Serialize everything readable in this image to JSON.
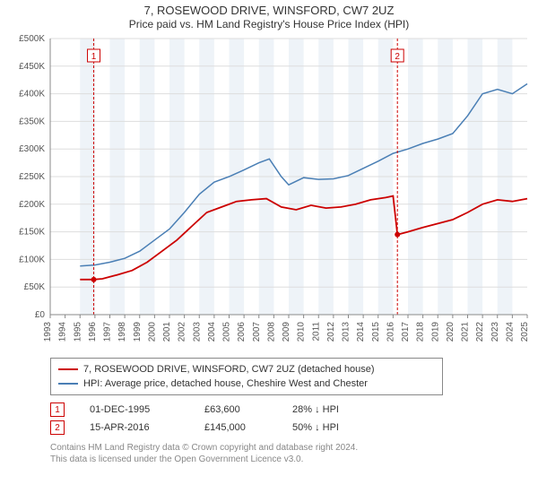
{
  "title_main": "7, ROSEWOOD DRIVE, WINSFORD, CW7 2UZ",
  "title_sub": "Price paid vs. HM Land Registry's House Price Index (HPI)",
  "chart": {
    "type": "line",
    "background_color": "#ffffff",
    "x_axis": {
      "min": 1993,
      "max": 2025,
      "ticks": [
        1993,
        1994,
        1995,
        1996,
        1997,
        1998,
        1999,
        2000,
        2001,
        2002,
        2003,
        2004,
        2005,
        2006,
        2007,
        2008,
        2009,
        2010,
        2011,
        2012,
        2013,
        2014,
        2015,
        2016,
        2017,
        2018,
        2019,
        2020,
        2021,
        2022,
        2023,
        2024,
        2025
      ],
      "label_fontsize": 10,
      "label_color": "#555555"
    },
    "y_axis": {
      "min": 0,
      "max": 500000,
      "tick_step": 50000,
      "tick_prefix": "£",
      "tick_suffix": "K",
      "ticks": [
        0,
        50000,
        100000,
        150000,
        200000,
        250000,
        300000,
        350000,
        400000,
        450000,
        500000
      ],
      "label_fontsize": 10,
      "label_color": "#555555",
      "grid_color": "#dddddd"
    },
    "shaded_bands": [
      {
        "from_year": 1995.0,
        "to_year": 1996.0,
        "color": "#eef3f8"
      },
      {
        "from_year": 1997.0,
        "to_year": 1998.0,
        "color": "#eef3f8"
      },
      {
        "from_year": 1999.0,
        "to_year": 2000.0,
        "color": "#eef3f8"
      },
      {
        "from_year": 2001.0,
        "to_year": 2002.0,
        "color": "#eef3f8"
      },
      {
        "from_year": 2003.0,
        "to_year": 2004.0,
        "color": "#eef3f8"
      },
      {
        "from_year": 2005.0,
        "to_year": 2006.0,
        "color": "#eef3f8"
      },
      {
        "from_year": 2007.0,
        "to_year": 2008.0,
        "color": "#eef3f8"
      },
      {
        "from_year": 2009.0,
        "to_year": 2010.0,
        "color": "#eef3f8"
      },
      {
        "from_year": 2011.0,
        "to_year": 2012.0,
        "color": "#eef3f8"
      },
      {
        "from_year": 2013.0,
        "to_year": 2014.0,
        "color": "#eef3f8"
      },
      {
        "from_year": 2015.0,
        "to_year": 2016.0,
        "color": "#eef3f8"
      },
      {
        "from_year": 2017.0,
        "to_year": 2018.0,
        "color": "#eef3f8"
      },
      {
        "from_year": 2019.0,
        "to_year": 2020.0,
        "color": "#eef3f8"
      },
      {
        "from_year": 2021.0,
        "to_year": 2022.0,
        "color": "#eef3f8"
      },
      {
        "from_year": 2023.0,
        "to_year": 2024.0,
        "color": "#eef3f8"
      }
    ],
    "series": [
      {
        "id": "price_paid",
        "label": "7, ROSEWOOD DRIVE, WINSFORD, CW7 2UZ (detached house)",
        "color": "#cc0000",
        "line_width": 1.8,
        "data": [
          [
            1995.0,
            63600
          ],
          [
            1995.92,
            63600
          ],
          [
            1996.5,
            65000
          ],
          [
            1997.5,
            72000
          ],
          [
            1998.5,
            80000
          ],
          [
            1999.5,
            95000
          ],
          [
            2000.5,
            115000
          ],
          [
            2001.5,
            135000
          ],
          [
            2002.5,
            160000
          ],
          [
            2003.5,
            185000
          ],
          [
            2004.5,
            195000
          ],
          [
            2005.5,
            205000
          ],
          [
            2006.5,
            208000
          ],
          [
            2007.5,
            210000
          ],
          [
            2008.5,
            195000
          ],
          [
            2009.5,
            190000
          ],
          [
            2010.5,
            198000
          ],
          [
            2011.5,
            193000
          ],
          [
            2012.5,
            195000
          ],
          [
            2013.5,
            200000
          ],
          [
            2014.5,
            208000
          ],
          [
            2015.5,
            212000
          ],
          [
            2016.0,
            215000
          ],
          [
            2016.29,
            145000
          ],
          [
            2017.0,
            150000
          ],
          [
            2018.0,
            158000
          ],
          [
            2019.0,
            165000
          ],
          [
            2020.0,
            172000
          ],
          [
            2021.0,
            185000
          ],
          [
            2022.0,
            200000
          ],
          [
            2023.0,
            208000
          ],
          [
            2024.0,
            205000
          ],
          [
            2025.0,
            210000
          ]
        ]
      },
      {
        "id": "hpi",
        "label": "HPI: Average price, detached house, Cheshire West and Chester",
        "color": "#4a7fb5",
        "line_width": 1.5,
        "data": [
          [
            1995.0,
            88000
          ],
          [
            1996.0,
            90000
          ],
          [
            1997.0,
            95000
          ],
          [
            1998.0,
            102000
          ],
          [
            1999.0,
            115000
          ],
          [
            2000.0,
            135000
          ],
          [
            2001.0,
            155000
          ],
          [
            2002.0,
            185000
          ],
          [
            2003.0,
            218000
          ],
          [
            2004.0,
            240000
          ],
          [
            2005.0,
            250000
          ],
          [
            2006.0,
            262000
          ],
          [
            2007.0,
            275000
          ],
          [
            2007.7,
            282000
          ],
          [
            2008.5,
            250000
          ],
          [
            2009.0,
            235000
          ],
          [
            2010.0,
            248000
          ],
          [
            2011.0,
            245000
          ],
          [
            2012.0,
            246000
          ],
          [
            2013.0,
            252000
          ],
          [
            2014.0,
            265000
          ],
          [
            2015.0,
            278000
          ],
          [
            2016.0,
            292000
          ],
          [
            2017.0,
            300000
          ],
          [
            2018.0,
            310000
          ],
          [
            2019.0,
            318000
          ],
          [
            2020.0,
            328000
          ],
          [
            2021.0,
            360000
          ],
          [
            2022.0,
            400000
          ],
          [
            2023.0,
            408000
          ],
          [
            2024.0,
            400000
          ],
          [
            2025.0,
            418000
          ]
        ]
      }
    ],
    "price_markers": [
      {
        "n": "1",
        "year": 1995.92,
        "value": 63600,
        "line_color": "#cc0000",
        "dash": "3,2"
      },
      {
        "n": "2",
        "year": 2016.29,
        "value": 145000,
        "line_color": "#cc0000",
        "dash": "3,2"
      }
    ]
  },
  "legend": {
    "rows": [
      {
        "color": "#cc0000",
        "label": "7, ROSEWOOD DRIVE, WINSFORD, CW7 2UZ (detached house)"
      },
      {
        "color": "#4a7fb5",
        "label": "HPI: Average price, detached house, Cheshire West and Chester"
      }
    ]
  },
  "transactions": [
    {
      "n": "1",
      "date": "01-DEC-1995",
      "price": "£63,600",
      "diff": "28% ↓ HPI"
    },
    {
      "n": "2",
      "date": "15-APR-2016",
      "price": "£145,000",
      "diff": "50% ↓ HPI"
    }
  ],
  "footnote_line1": "Contains HM Land Registry data © Crown copyright and database right 2024.",
  "footnote_line2": "This data is licensed under the Open Government Licence v3.0."
}
